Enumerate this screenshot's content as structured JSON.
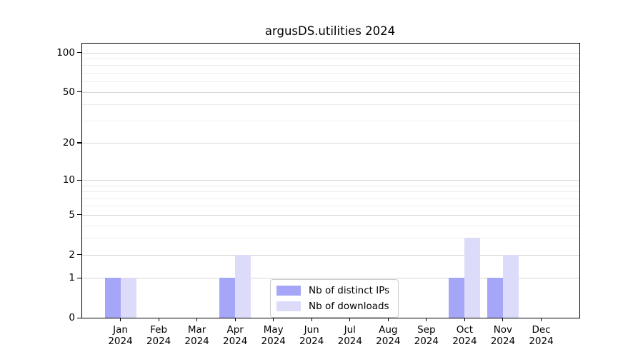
{
  "chart_data": {
    "type": "bar",
    "title": "argusDS.utilities 2024",
    "xlabel": "",
    "ylabel": "",
    "categories": [
      {
        "month": "Jan",
        "year": "2024"
      },
      {
        "month": "Feb",
        "year": "2024"
      },
      {
        "month": "Mar",
        "year": "2024"
      },
      {
        "month": "Apr",
        "year": "2024"
      },
      {
        "month": "May",
        "year": "2024"
      },
      {
        "month": "Jun",
        "year": "2024"
      },
      {
        "month": "Jul",
        "year": "2024"
      },
      {
        "month": "Aug",
        "year": "2024"
      },
      {
        "month": "Sep",
        "year": "2024"
      },
      {
        "month": "Oct",
        "year": "2024"
      },
      {
        "month": "Nov",
        "year": "2024"
      },
      {
        "month": "Dec",
        "year": "2024"
      }
    ],
    "series": [
      {
        "name": "Nb of distinct IPs",
        "color": "#a6a6f8",
        "values": [
          1,
          0,
          0,
          1,
          0,
          0,
          0,
          0,
          0,
          1,
          1,
          0
        ]
      },
      {
        "name": "Nb of downloads",
        "color": "#dcdcfa",
        "values": [
          1,
          0,
          0,
          2,
          0,
          0,
          0,
          0,
          0,
          3,
          2,
          0
        ]
      }
    ],
    "y_axis": {
      "scale": "log1p",
      "major_ticks": [
        0,
        1,
        2,
        5,
        10,
        20,
        50,
        100
      ],
      "minor_gridlines": [
        3,
        4,
        6,
        7,
        8,
        9,
        30,
        40,
        60,
        70,
        80,
        90
      ],
      "ylim": [
        0,
        117
      ]
    },
    "legend": {
      "position": "lower center"
    },
    "grid": "horizontal-major-and-minor",
    "colors": {
      "grid_major": "#d6d6d6",
      "grid_minor": "#ececec",
      "spine": "#000000",
      "background": "#ffffff"
    }
  }
}
